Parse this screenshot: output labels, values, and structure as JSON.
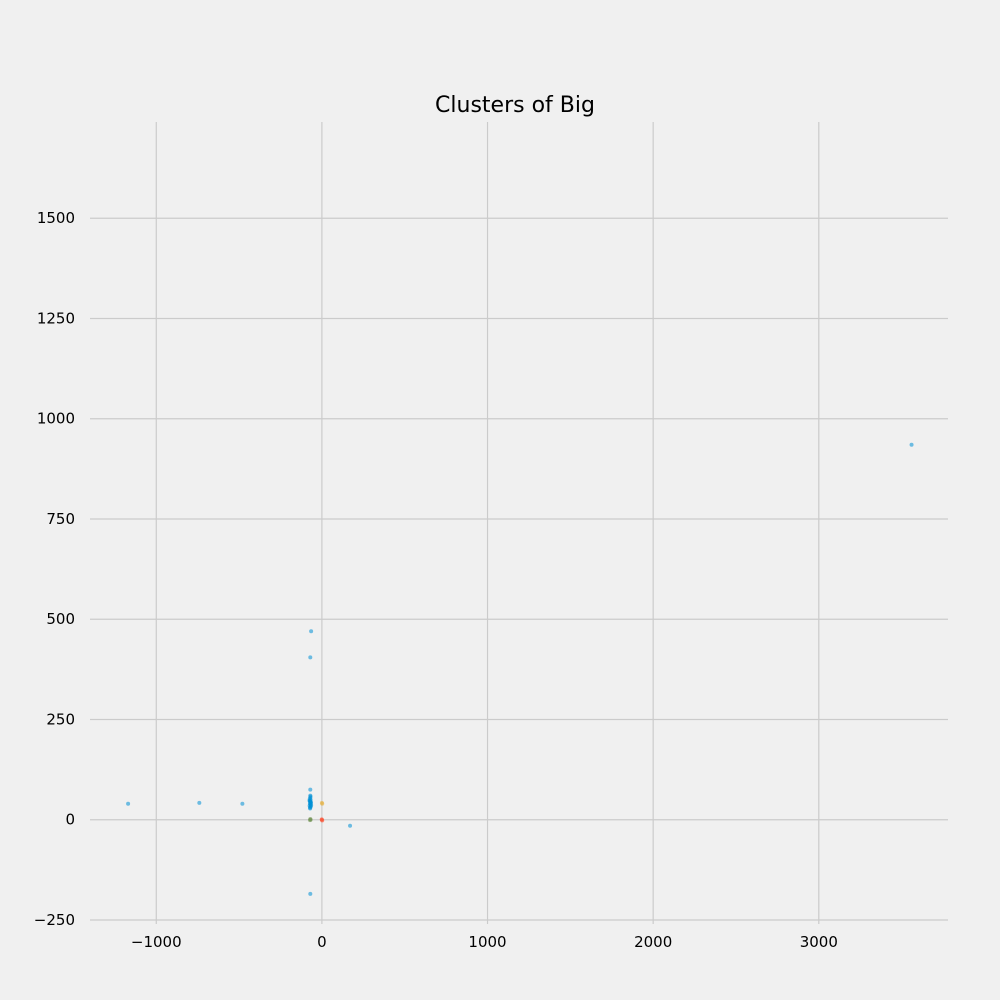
{
  "chart_data": {
    "type": "scatter",
    "title": "Clusters of Big",
    "xlabel": "",
    "ylabel": "",
    "xlim": [
      -1400,
      3780
    ],
    "ylim": [
      -260,
      1740
    ],
    "xticks": [
      -1000,
      0,
      1000,
      2000,
      3000
    ],
    "xtick_labels": [
      "−1000",
      "0",
      "1000",
      "2000",
      "3000"
    ],
    "yticks": [
      -250,
      0,
      250,
      500,
      750,
      1000,
      1250,
      1500
    ],
    "ytick_labels": [
      "−250",
      "0",
      "250",
      "500",
      "750",
      "1000",
      "1250",
      "1500"
    ],
    "grid": true,
    "series": [
      {
        "color": "#008fd5",
        "points": [
          [
            -70,
            45
          ],
          [
            -72,
            40
          ],
          [
            -68,
            50
          ],
          [
            -74,
            35
          ],
          [
            -66,
            42
          ],
          [
            -70,
            55
          ],
          [
            -72,
            30
          ],
          [
            -68,
            38
          ],
          [
            -71,
            47
          ],
          [
            -69,
            33
          ],
          [
            -73,
            52
          ],
          [
            -67,
            44
          ],
          [
            -70,
            60
          ],
          [
            -75,
            48
          ],
          [
            -65,
            36
          ],
          [
            -70,
            41
          ],
          [
            -71,
            28
          ],
          [
            -69,
            58
          ],
          [
            -72,
            46
          ],
          [
            -68,
            32
          ],
          [
            -740,
            42
          ],
          [
            -1170,
            40
          ],
          [
            -480,
            40
          ],
          [
            -70,
            405
          ],
          [
            -65,
            470
          ],
          [
            -70,
            -185
          ],
          [
            170,
            -15
          ],
          [
            3560,
            935
          ],
          [
            -70,
            75
          ]
        ]
      },
      {
        "color": "#fc4f30",
        "points": [
          [
            0,
            0
          ],
          [
            2,
            -2
          ],
          [
            -1,
            1
          ]
        ]
      },
      {
        "color": "#e5ae38",
        "points": [
          [
            0,
            42
          ],
          [
            2,
            40
          ]
        ]
      },
      {
        "color": "#6d904f",
        "points": [
          [
            -70,
            2
          ],
          [
            -68,
            0
          ],
          [
            -72,
            -1
          ]
        ]
      }
    ]
  }
}
